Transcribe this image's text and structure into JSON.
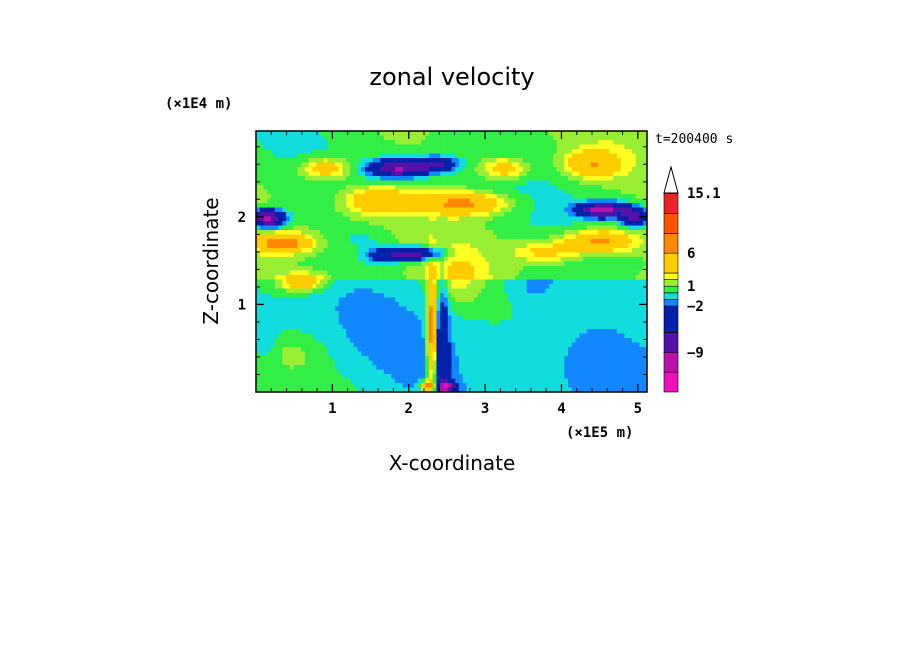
{
  "chart_data": {
    "type": "heatmap",
    "title": "zonal velocity",
    "xlabel": "X-coordinate",
    "ylabel": "Z-coordinate",
    "x_scale_label": "(×1E5 m)",
    "y_scale_label": "(×1E4 m)",
    "time_label": "t=200400 s",
    "xlim": [
      0,
      5.12
    ],
    "ylim": [
      0,
      2.98
    ],
    "x_ticks": [
      1,
      2,
      3,
      4,
      5
    ],
    "x_tick_labels": [
      "1",
      "2",
      "3",
      "4",
      "5"
    ],
    "y_ticks": [
      1,
      2
    ],
    "y_tick_labels": [
      "1",
      "2"
    ],
    "grid": false,
    "colorbar": {
      "levels": [
        -12,
        -9,
        -6,
        -2,
        -1,
        0,
        1,
        2,
        3,
        6,
        9,
        12,
        15.1
      ],
      "colors": [
        "#ee11bb",
        "#bb11aa",
        "#5511aa",
        "#0022aa",
        "#1188ff",
        "#11dddd",
        "#33ee44",
        "#99ee33",
        "#ffff22",
        "#ffcc00",
        "#ff8800",
        "#ff5500",
        "#ee2222",
        "#ff8888",
        "#ffbbbb"
      ],
      "labels": [
        "15.1",
        "6",
        "1",
        "−2",
        "−9"
      ],
      "label_values": [
        15.1,
        6,
        1,
        -2,
        -9
      ],
      "extend_top": true
    },
    "features": [
      {
        "x": 4.6,
        "z": 1.75,
        "value": 5,
        "desc": "positive band right"
      },
      {
        "x": 0.2,
        "z": 1.7,
        "value": 6
      }
    ]
  }
}
